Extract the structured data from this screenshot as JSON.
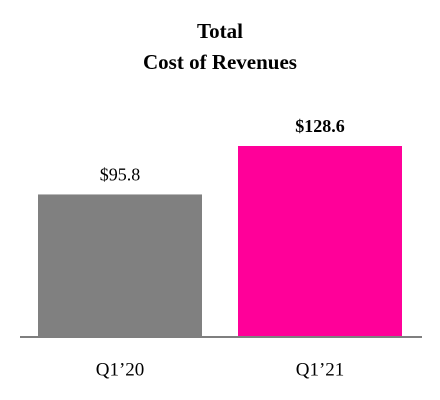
{
  "chart_data": {
    "type": "bar",
    "title": [
      "Total",
      "Cost of Revenues"
    ],
    "categories": [
      "Q1’20",
      "Q1’21"
    ],
    "values": [
      95.8,
      128.6
    ],
    "value_labels": [
      "$95.8",
      "$128.6"
    ],
    "value_label_weights": [
      "normal",
      "bold"
    ],
    "colors": [
      "#808080",
      "#ff0099"
    ]
  }
}
